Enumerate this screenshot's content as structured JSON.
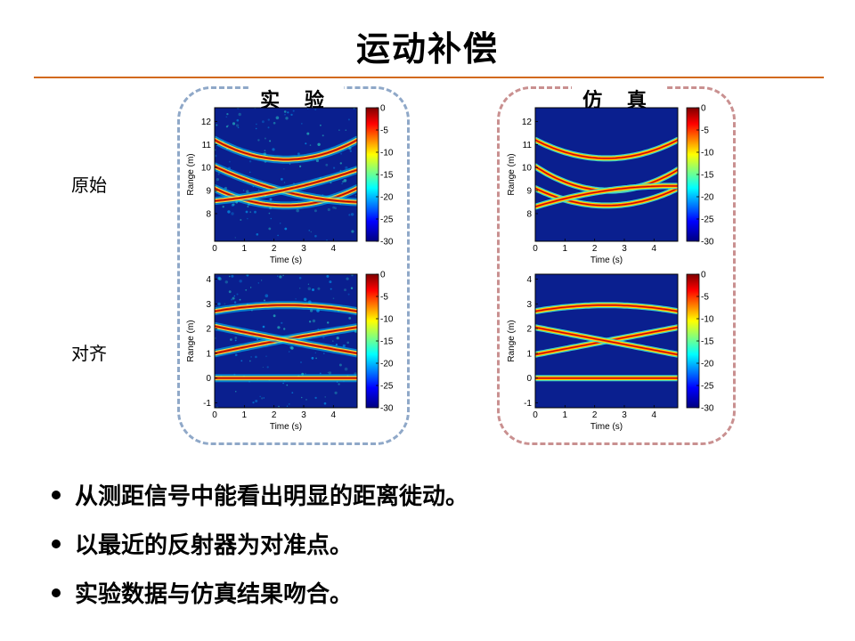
{
  "slide": {
    "title": "运动补偿",
    "groups": {
      "experiment": "实 验",
      "simulation": "仿 真"
    },
    "rows": {
      "raw": "原始",
      "aligned": "对齐"
    },
    "bullets": [
      "从测距信号中能看出明显的距离徙动。",
      "以最近的反射器为对准点。",
      "实验数据与仿真结果吻合。"
    ],
    "colors": {
      "rule": "#d2691e",
      "experiment_border": "#8fa8c8",
      "simulation_border": "#c99090",
      "plot_background": "#0a1f8f"
    }
  },
  "chart_data": [
    {
      "type": "heatmap",
      "id": "exp-raw",
      "group": "实 验",
      "row": "原始",
      "xlabel": "Time (s)",
      "ylabel": "Range (m)",
      "xlim": [
        0,
        4.8
      ],
      "ylim": [
        6.8,
        12.6
      ],
      "xticks": [
        0,
        1,
        2,
        3,
        4
      ],
      "yticks": [
        8,
        9,
        10,
        11,
        12
      ],
      "colorbar": {
        "range": [
          -30,
          0
        ],
        "ticks": [
          0,
          -5,
          -10,
          -15,
          -20,
          -25,
          -30
        ]
      },
      "noise": true,
      "curves": [
        {
          "t": [
            0,
            2.4,
            4.8
          ],
          "r": [
            11.2,
            10.35,
            11.2
          ]
        },
        {
          "t": [
            0,
            2.4,
            4.8
          ],
          "r": [
            9.1,
            8.35,
            9.1
          ]
        },
        {
          "t": [
            0,
            2.25,
            4.8
          ],
          "r": [
            10.05,
            9.0,
            8.5
          ]
        },
        {
          "t": [
            0,
            2.25,
            4.8
          ],
          "r": [
            8.55,
            9.0,
            9.9
          ]
        }
      ]
    },
    {
      "type": "heatmap",
      "id": "sim-raw",
      "group": "仿 真",
      "row": "原始",
      "xlabel": "Time (s)",
      "ylabel": "Range (m)",
      "xlim": [
        0,
        4.8
      ],
      "ylim": [
        6.8,
        12.6
      ],
      "xticks": [
        0,
        1,
        2,
        3,
        4
      ],
      "yticks": [
        8,
        9,
        10,
        11,
        12
      ],
      "colorbar": {
        "range": [
          -30,
          0
        ],
        "ticks": [
          0,
          -5,
          -10,
          -15,
          -20,
          -25,
          -30
        ]
      },
      "noise": false,
      "curves": [
        {
          "t": [
            0,
            2.4,
            4.8
          ],
          "r": [
            11.2,
            10.4,
            11.2
          ]
        },
        {
          "t": [
            0,
            2.4,
            4.8
          ],
          "r": [
            9.1,
            8.35,
            9.1
          ]
        },
        {
          "t": [
            0,
            2.4,
            4.8
          ],
          "r": [
            10.05,
            9.0,
            9.9
          ]
        },
        {
          "t": [
            0,
            2.4,
            4.8
          ],
          "r": [
            8.3,
            9.0,
            9.2
          ]
        }
      ]
    },
    {
      "type": "heatmap",
      "id": "exp-aligned",
      "group": "实 验",
      "row": "对齐",
      "xlabel": "Time (s)",
      "ylabel": "Range (m)",
      "xlim": [
        0,
        4.8
      ],
      "ylim": [
        -1.2,
        4.2
      ],
      "xticks": [
        0,
        1,
        2,
        3,
        4
      ],
      "yticks": [
        -1,
        0,
        1,
        2,
        3,
        4
      ],
      "colorbar": {
        "range": [
          -30,
          0
        ],
        "ticks": [
          0,
          -5,
          -10,
          -15,
          -20,
          -25,
          -30
        ]
      },
      "noise": true,
      "curves": [
        {
          "t": [
            0,
            2.4,
            4.8
          ],
          "r": [
            2.7,
            2.95,
            2.7
          ]
        },
        {
          "t": [
            0,
            2.4,
            4.8
          ],
          "r": [
            0.0,
            0.0,
            0.0
          ]
        },
        {
          "t": [
            0,
            2.3,
            4.8
          ],
          "r": [
            1.0,
            1.55,
            2.05
          ]
        },
        {
          "t": [
            0,
            2.3,
            4.8
          ],
          "r": [
            2.1,
            1.55,
            1.0
          ]
        }
      ]
    },
    {
      "type": "heatmap",
      "id": "sim-aligned",
      "group": "仿 真",
      "row": "对齐",
      "xlabel": "Time (s)",
      "ylabel": "Range (m)",
      "xlim": [
        0,
        4.8
      ],
      "ylim": [
        -1.2,
        4.2
      ],
      "xticks": [
        0,
        1,
        2,
        3,
        4
      ],
      "yticks": [
        -1,
        0,
        1,
        2,
        3,
        4
      ],
      "colorbar": {
        "range": [
          -30,
          0
        ],
        "ticks": [
          0,
          -5,
          -10,
          -15,
          -20,
          -25,
          -30
        ]
      },
      "noise": false,
      "curves": [
        {
          "t": [
            0,
            2.4,
            4.8
          ],
          "r": [
            2.7,
            2.95,
            2.7
          ]
        },
        {
          "t": [
            0,
            2.4,
            4.8
          ],
          "r": [
            0.0,
            0.0,
            0.0
          ]
        },
        {
          "t": [
            0,
            2.4,
            4.8
          ],
          "r": [
            0.95,
            1.5,
            2.05
          ]
        },
        {
          "t": [
            0,
            2.4,
            4.8
          ],
          "r": [
            2.05,
            1.5,
            0.95
          ]
        }
      ]
    }
  ]
}
